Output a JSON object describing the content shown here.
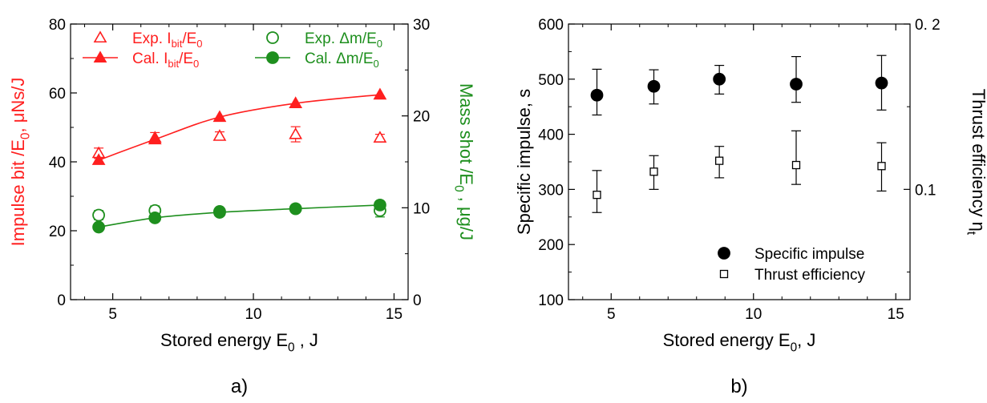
{
  "colors": {
    "red": "#ff1f1f",
    "green": "#1e8f1e",
    "black": "#000000"
  },
  "chart_data": [
    {
      "type": "scatter",
      "panel_label": "a)",
      "xlabel": {
        "main": "Stored energy E",
        "sub": "0",
        "tail": " , J"
      },
      "ylabel_left": {
        "pre": "Impulse bit /E",
        "sub": "0",
        "post": ",  μNs/J"
      },
      "ylabel_right": {
        "pre": "Mass shot /E",
        "sub": "0",
        "post": " , μg/J"
      },
      "xlim": [
        3.5,
        15.5
      ],
      "ylim_left": [
        0,
        80
      ],
      "ylim_right": [
        0,
        30
      ],
      "x_ticks": [
        5,
        10,
        15
      ],
      "y_left_ticks": [
        0,
        20,
        40,
        60,
        80
      ],
      "y_right_ticks": [
        0,
        10,
        20,
        30
      ],
      "x": [
        4.5,
        6.5,
        8.8,
        11.5,
        14.5
      ],
      "series": [
        {
          "name": "Exp. I_bit/E_0",
          "legend": {
            "pre": "Exp. I",
            "sub": "bit",
            "mid": "/E",
            "sub2": "0"
          },
          "axis": "left",
          "marker": "triangle-open",
          "color": "red",
          "line": false,
          "values": [
            42.5,
            47,
            47.5,
            48,
            47
          ],
          "err": [
            1.5,
            1.5,
            1.2,
            2.2,
            1
          ]
        },
        {
          "name": "Cal. I_bit/E_0",
          "legend": {
            "pre": "Cal. I",
            "sub": "bit",
            "mid": "/E",
            "sub2": "0"
          },
          "axis": "left",
          "marker": "triangle-filled",
          "color": "red",
          "line": true,
          "values": [
            40.5,
            46.5,
            53,
            57,
            59.5
          ],
          "err": null
        },
        {
          "name": "Exp. Δm/E_0",
          "legend": {
            "pre": "Exp. Δm/E",
            "sub": "0",
            "mid": "",
            "sub2": ""
          },
          "axis": "right",
          "marker": "circle-open",
          "color": "green",
          "line": false,
          "values": [
            9.2,
            9.7,
            9.6,
            9.9,
            9.7
          ],
          "err": [
            0.5,
            0.5,
            0.3,
            0.4,
            0.7
          ]
        },
        {
          "name": "Cal. Δm/E_0",
          "legend": {
            "pre": "Cal. Δm/E",
            "sub": "0",
            "mid": "",
            "sub2": ""
          },
          "axis": "right",
          "marker": "circle-filled",
          "color": "green",
          "line": true,
          "values": [
            7.9,
            8.9,
            9.5,
            9.9,
            10.3
          ],
          "err": null
        }
      ],
      "legend_placement": "top"
    },
    {
      "type": "scatter",
      "panel_label": "b)",
      "xlabel": {
        "main": "Stored energy E",
        "sub": "0",
        "tail": ", J"
      },
      "ylabel_left": {
        "pre": "Specific impulse, s",
        "sub": "",
        "post": ""
      },
      "ylabel_right": {
        "pre": "Thrust efficiency η",
        "sub": "t",
        "post": ""
      },
      "xlim": [
        3.5,
        15.5
      ],
      "ylim_left": [
        100,
        600
      ],
      "ylim_right": [
        0.0333,
        0.2
      ],
      "x_ticks": [
        5,
        10,
        15
      ],
      "y_left_ticks": [
        100,
        200,
        300,
        400,
        500,
        600
      ],
      "y_right_ticks": [
        0.1,
        0.2
      ],
      "y_right_tick_labels": [
        "0.1",
        "0. 2"
      ],
      "x": [
        4.5,
        6.5,
        8.8,
        11.5,
        14.5
      ],
      "series": [
        {
          "name": "Specific impulse",
          "axis": "left",
          "marker": "circle-filled",
          "color": "black",
          "values": [
            471,
            487,
            500,
            491,
            493
          ],
          "err_up": [
            47,
            30,
            25,
            50,
            50
          ],
          "err_down": [
            36,
            32,
            27,
            33,
            49
          ]
        },
        {
          "name": "Thrust efficiency",
          "axis": "right",
          "marker": "square-open",
          "color": "black",
          "values": [
            0.0967,
            0.1107,
            0.1173,
            0.1147,
            0.1141
          ],
          "err_up": [
            0.0147,
            0.0097,
            0.0087,
            0.0207,
            0.0141
          ],
          "err_down": [
            0.0107,
            0.0107,
            0.0103,
            0.0117,
            0.0151
          ]
        }
      ],
      "legend_placement": "bottom-right"
    }
  ]
}
